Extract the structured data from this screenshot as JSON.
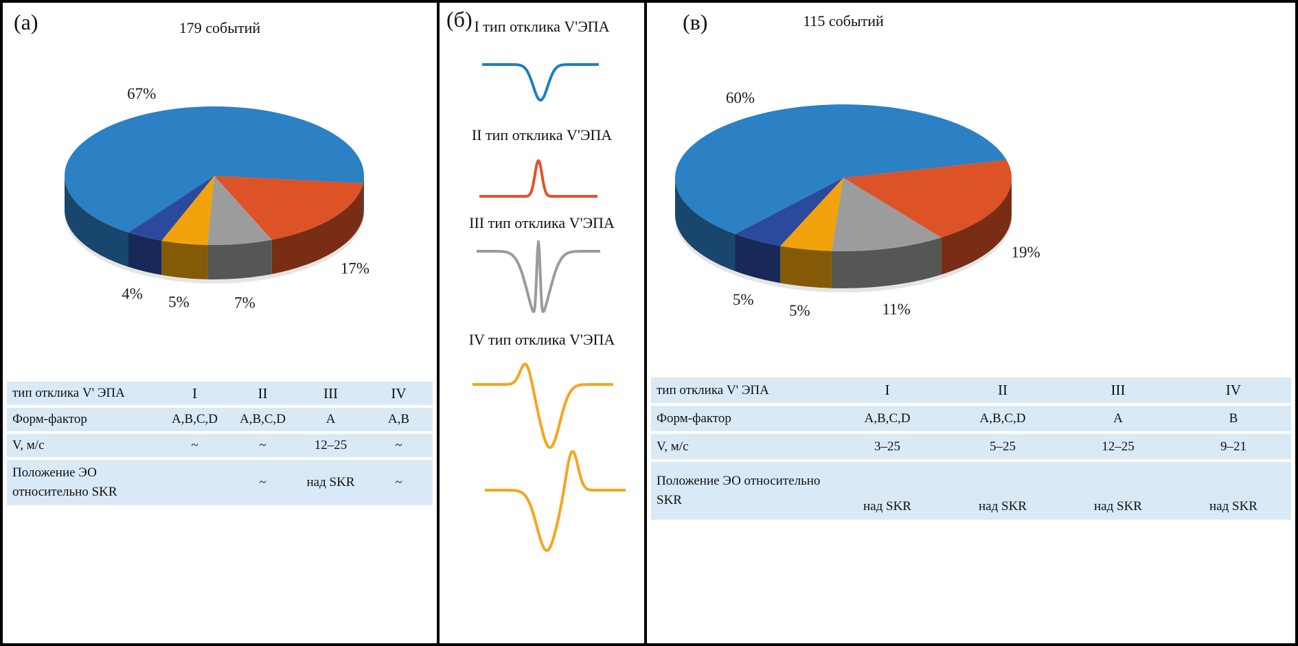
{
  "figure_tags": {
    "a": "(а)",
    "b": "(б)",
    "v": "(в)"
  },
  "chart_data": [
    {
      "type": "pie",
      "style": "3d",
      "panel": "а",
      "title": "179 событий",
      "slice_labels": [
        "67%",
        "17%",
        "7%",
        "5%",
        "4%"
      ],
      "values": [
        67,
        17,
        7,
        5,
        4
      ],
      "colors": [
        "#2c80c4",
        "#dd5226",
        "#9c9c9c",
        "#f2a30b",
        "#2b4a9e"
      ],
      "start_angle_deg": 215,
      "legend": false,
      "label_position": "outside"
    },
    {
      "type": "pie",
      "style": "3d",
      "panel": "в",
      "title": "115 событий",
      "slice_labels": [
        "60%",
        "19%",
        "11%",
        "5%",
        "5%"
      ],
      "values": [
        60,
        19,
        11,
        5,
        5
      ],
      "colors": [
        "#2c80c4",
        "#dd5226",
        "#9c9c9c",
        "#f2a30b",
        "#2b4a9e"
      ],
      "start_angle_deg": 220,
      "legend": false,
      "label_position": "outside"
    },
    {
      "type": "line",
      "panel": "б",
      "series": [
        {
          "label": "I тип отклика V'ЭПА",
          "shape_key": "dip",
          "shape": "downward dip",
          "color": "#1f7ec2"
        },
        {
          "label": "II тип отклика V'ЭПА",
          "shape_key": "peak",
          "shape": "narrow upward peak",
          "color": "#e8502a"
        },
        {
          "label": "III тип отклика V'ЭПА",
          "shape_key": "dip-spike",
          "shape": "broad dip with central spike",
          "color": "#9b9b9b"
        },
        {
          "label": "IV тип отклика V'ЭПА",
          "shape_key": "peak-dip",
          "shape": "peak then deep dip",
          "color": "#f7a41d"
        },
        {
          "label": "",
          "shape_key": "dip-peak",
          "shape": "deep dip then peak",
          "color": "#f7a41d"
        }
      ]
    }
  ],
  "tables": {
    "a": {
      "rows": [
        {
          "label": "тип отклика V' ЭПА",
          "cells": [
            "I",
            "II",
            "III",
            "IV"
          ]
        },
        {
          "label": "Форм-фактор",
          "cells": [
            "A,B,C,D",
            "A,B,C,D",
            "A",
            "A,B"
          ]
        },
        {
          "label": "V, м/с",
          "cells": [
            "~",
            "~",
            "12–25",
            "~"
          ]
        },
        {
          "label": "Положение ЭО относительно SKR",
          "cells": [
            "",
            "~",
            "над SKR",
            "~"
          ]
        }
      ]
    },
    "v": {
      "rows": [
        {
          "label": "тип отклика V' ЭПА",
          "cells": [
            "I",
            "II",
            "III",
            "IV"
          ]
        },
        {
          "label": "Форм-фактор",
          "cells": [
            "A,B,C,D",
            "A,B,C,D",
            "A",
            "B"
          ]
        },
        {
          "label": "V, м/с",
          "cells": [
            "3–25",
            "5–25",
            "12–25",
            "9–21"
          ]
        },
        {
          "label": "Положение ЭО относительно SKR",
          "cells": [
            "над SKR",
            "над SKR",
            "над SKR",
            "над SKR"
          ]
        }
      ]
    }
  }
}
